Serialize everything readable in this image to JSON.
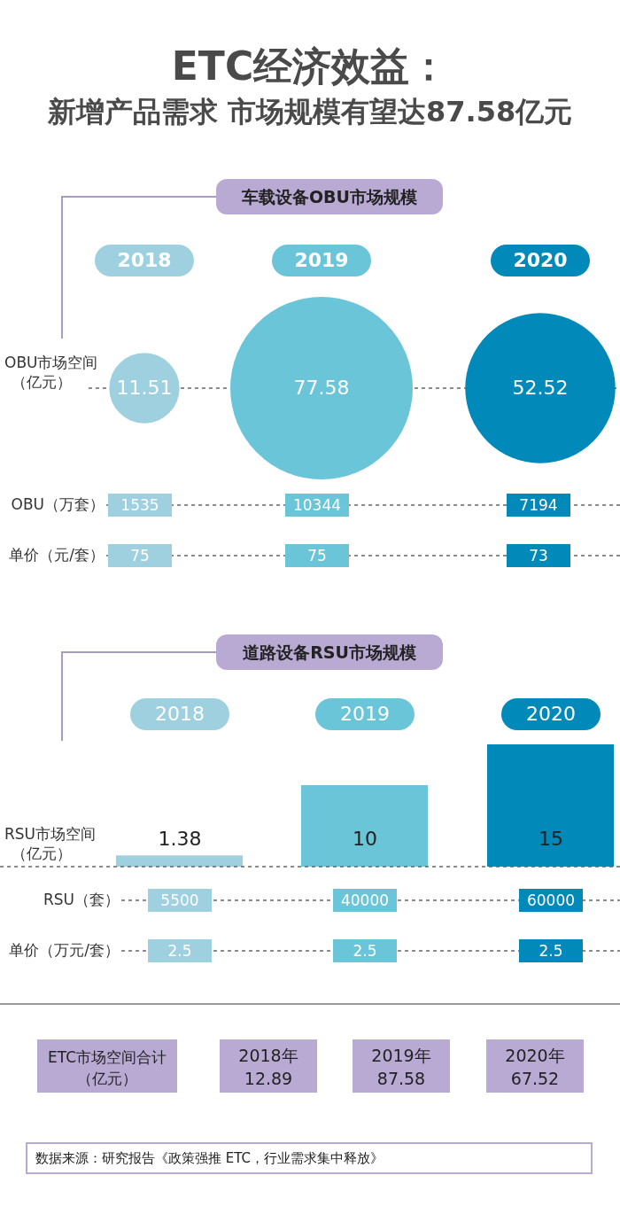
{
  "chart_data": [
    {
      "type": "other",
      "title": "ETC经济效益：",
      "subtitle": "新增产品需求 市场规模有望达87.58亿元"
    },
    {
      "type": "other",
      "title": "车载设备OBU市场规模",
      "ylabel": "OBU市场空间（亿元）",
      "categories": [
        "2018",
        "2019",
        "2020"
      ],
      "values": [
        11.51,
        77.58,
        52.52
      ],
      "colors": [
        "#9fd0df",
        "#6bc5d8",
        "#0089b9"
      ],
      "data_labels": true
    },
    {
      "type": "other",
      "ylabel": "OBU（万套）",
      "values": [
        1535,
        10344,
        7194
      ],
      "colors": [
        "#9fd0df",
        "#6bc5d8",
        "#0089b9"
      ],
      "data_labels": true
    },
    {
      "type": "other",
      "ylabel": "单价（元/套）",
      "values": [
        75,
        75,
        73
      ],
      "colors": [
        "#9fd0df",
        "#6bc5d8",
        "#0089b9"
      ],
      "data_labels": true
    },
    {
      "type": "bar",
      "title": "道路设备RSU市场规模",
      "ylabel": "RSU市场空间（亿元）",
      "categories": [
        "2018",
        "2019",
        "2020"
      ],
      "values": [
        1.38,
        10,
        15
      ],
      "colors": [
        "#9fd0df",
        "#6bc5d8",
        "#0089b9"
      ],
      "data_labels": true
    },
    {
      "type": "other",
      "ylabel": "RSU（套）",
      "values": [
        5500,
        40000,
        60000
      ],
      "colors": [
        "#9fd0df",
        "#6bc5d8",
        "#0089b9"
      ],
      "data_labels": true
    },
    {
      "type": "other",
      "ylabel": "单价（万元/套）",
      "values": [
        2.5,
        2.5,
        2.5
      ],
      "colors": [
        "#9fd0df",
        "#6bc5d8",
        "#0089b9"
      ],
      "data_labels": true
    },
    {
      "type": "other",
      "ylabel": "ETC市场空间合计（亿元）",
      "categories": [
        "2018年",
        "2019年",
        "2020年"
      ],
      "values": [
        12.89,
        87.58,
        67.52
      ],
      "colors": [
        "#b9aad4",
        "#b9aad4",
        "#b9aad4"
      ],
      "data_labels": true,
      "annotations": [
        "数据来源：研究报告《政策强推 ETC，行业需求集中释放》"
      ]
    }
  ]
}
